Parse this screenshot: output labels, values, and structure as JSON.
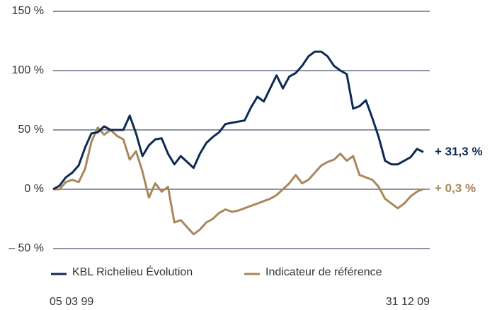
{
  "chart_data": {
    "type": "line",
    "categories": [
      "05 03 99",
      null,
      null,
      null,
      null,
      null,
      null,
      null,
      null,
      null,
      null,
      null,
      null,
      null,
      null,
      null,
      null,
      null,
      null,
      null,
      null,
      null,
      null,
      null,
      null,
      null,
      null,
      null,
      null,
      null,
      null,
      null,
      null,
      null,
      null,
      null,
      null,
      null,
      null,
      null,
      null,
      null,
      null,
      null,
      null,
      null,
      null,
      null,
      null,
      null,
      null,
      null,
      null,
      null,
      null,
      null,
      null,
      null,
      "31 12 09"
    ],
    "series": [
      {
        "name": "KBL Richelieu Évolution",
        "color": "#0d2a52",
        "end_label": "+ 31,3 %",
        "values": [
          0,
          3,
          10,
          14,
          20,
          35,
          47,
          48,
          53,
          50,
          50,
          50,
          62,
          47,
          28,
          37,
          42,
          43,
          30,
          21,
          28,
          23,
          18,
          30,
          39,
          44,
          48,
          55,
          56,
          57,
          58,
          69,
          78,
          74,
          85,
          96,
          85,
          95,
          98,
          104,
          112,
          116,
          116,
          112,
          104,
          100,
          97,
          68,
          70,
          75,
          60,
          44,
          24,
          21,
          21,
          24,
          27,
          34,
          31.3
        ]
      },
      {
        "name": "Indicateur de référence",
        "color": "#a8875a",
        "end_label": "+ 0,3 %",
        "values": [
          0,
          0,
          6,
          8,
          6,
          17,
          40,
          52,
          46,
          50,
          45,
          42,
          25,
          32,
          15,
          -7,
          5,
          -2,
          2,
          -28,
          -26,
          -32,
          -38,
          -34,
          -28,
          -25,
          -20,
          -17,
          -19,
          -18,
          -16,
          -14,
          -12,
          -10,
          -8,
          -5,
          0,
          5,
          12,
          5,
          8,
          14,
          20,
          23,
          25,
          30,
          24,
          28,
          12,
          10,
          8,
          2,
          -8,
          -12,
          -16,
          -12,
          -6,
          -2,
          0.3
        ]
      }
    ],
    "ylim": [
      -50,
      150
    ],
    "yticks": [
      {
        "value": -50,
        "label": "– 50 %"
      },
      {
        "value": 0,
        "label": "0 %"
      },
      {
        "value": 50,
        "label": "50 %"
      },
      {
        "value": 100,
        "label": "100 %"
      },
      {
        "value": 150,
        "label": "150 %"
      }
    ],
    "grid": true
  }
}
